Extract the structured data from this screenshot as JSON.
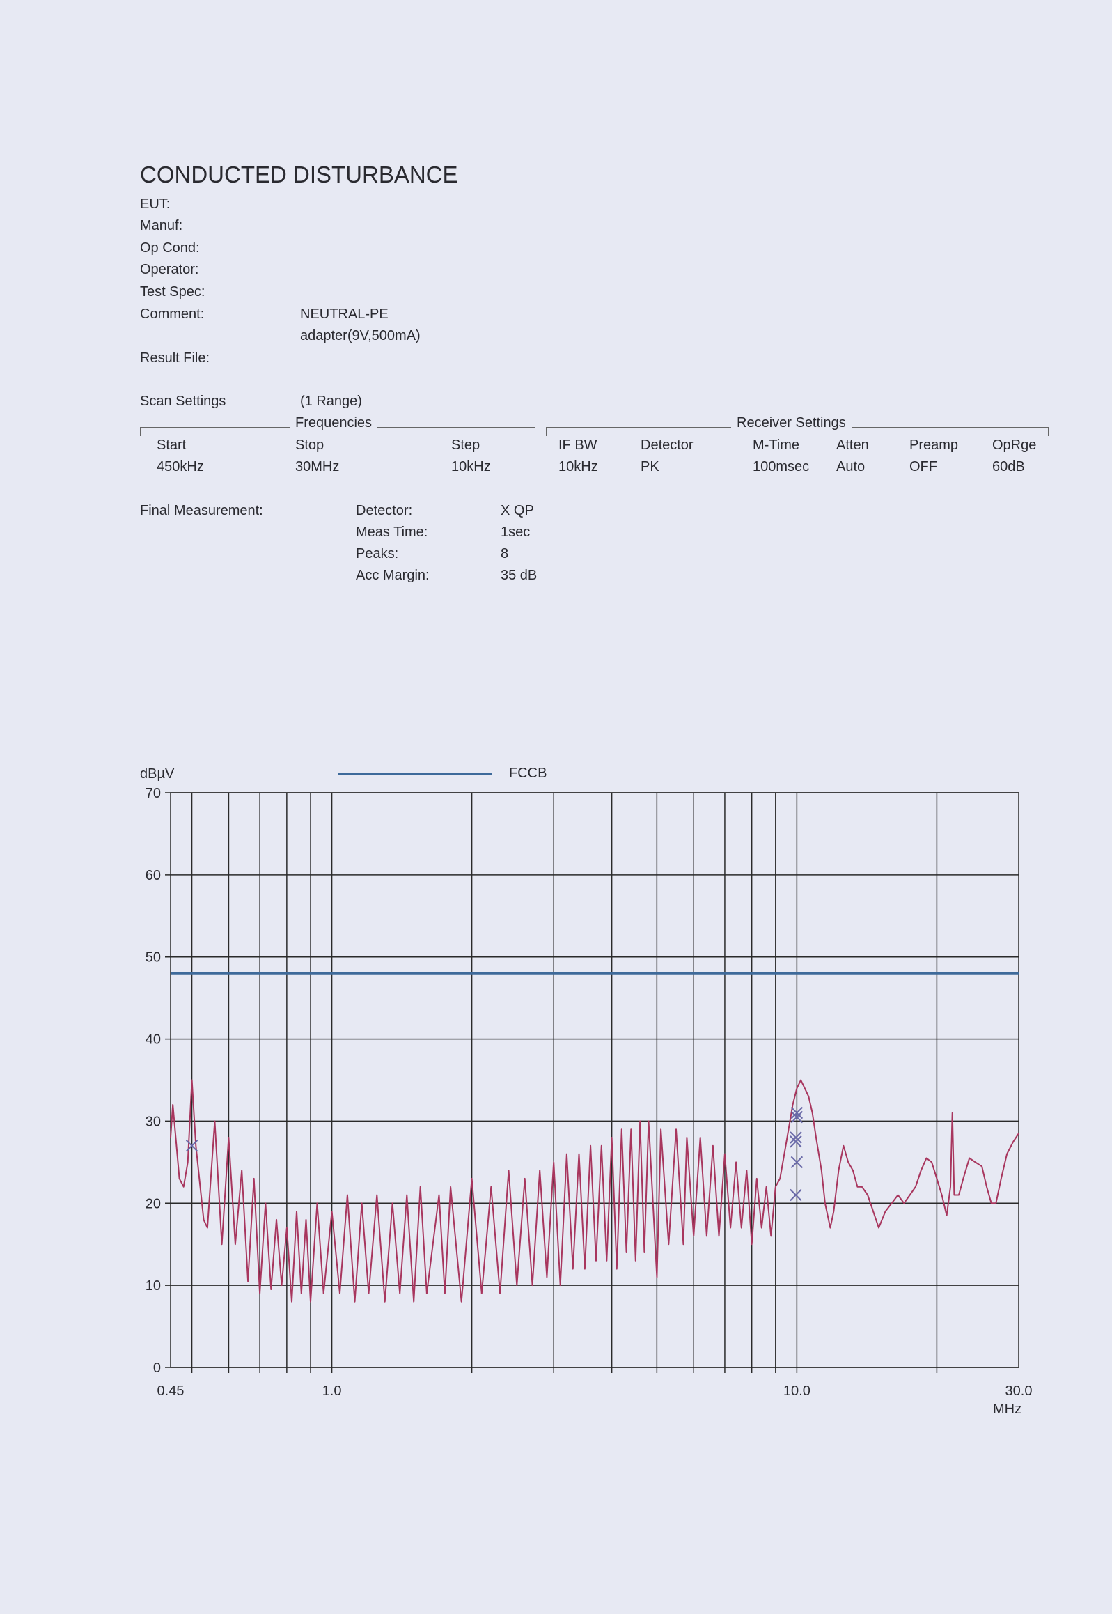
{
  "header": {
    "title": "CONDUCTED DISTURBANCE",
    "fields": [
      {
        "label": "EUT:",
        "value": ""
      },
      {
        "label": "Manuf:",
        "value": ""
      },
      {
        "label": "Op Cond:",
        "value": ""
      },
      {
        "label": "Operator:",
        "value": ""
      },
      {
        "label": "Test Spec:",
        "value": ""
      },
      {
        "label": "Comment:",
        "value": "NEUTRAL-PE"
      },
      {
        "label": "",
        "value": "adapter(9V,500mA)"
      },
      {
        "label": "Result File:",
        "value": ""
      }
    ]
  },
  "scan": {
    "label": "Scan Settings",
    "range": "(1  Range)",
    "frequencies_heading": "Frequencies",
    "receiver_heading": "Receiver Settings",
    "columns": [
      {
        "name": "Start",
        "value": "450kHz"
      },
      {
        "name": "Stop",
        "value": "30MHz"
      },
      {
        "name": "Step",
        "value": "10kHz"
      },
      {
        "name": "IF BW",
        "value": "10kHz"
      },
      {
        "name": "Detector",
        "value": "PK"
      },
      {
        "name": "M-Time",
        "value": "100msec"
      },
      {
        "name": "Atten",
        "value": "Auto"
      },
      {
        "name": "Preamp",
        "value": "OFF"
      },
      {
        "name": "OpRge",
        "value": "60dB"
      }
    ]
  },
  "final": {
    "label": "Final Measurement:",
    "rows": [
      {
        "name": "Detector:",
        "value": "X QP"
      },
      {
        "name": "Meas Time:",
        "value": "1sec"
      },
      {
        "name": "Peaks:",
        "value": "8"
      },
      {
        "name": "Acc Margin:",
        "value": "35 dB"
      }
    ]
  },
  "chart_data": {
    "type": "line",
    "ylabel": "dBµV",
    "xlabel": "MHz",
    "x_scale": "log",
    "xlim": [
      0.45,
      30.0
    ],
    "ylim": [
      0,
      70
    ],
    "yticks": [
      "0",
      "10",
      "20",
      "30",
      "40",
      "50",
      "60",
      "70"
    ],
    "xtick_labels": [
      {
        "x": 0.45,
        "label": "0.45"
      },
      {
        "x": 1.0,
        "label": "1.0"
      },
      {
        "x": 10.0,
        "label": "10.0"
      },
      {
        "x": 30.0,
        "label": "30.0"
      }
    ],
    "x_gridlines": [
      0.5,
      0.6,
      0.7,
      0.8,
      0.9,
      1,
      2,
      3,
      4,
      5,
      6,
      7,
      8,
      9,
      10,
      20
    ],
    "grid": true,
    "legend_placement": "top",
    "colors": {
      "limit": "#3e6a9a",
      "trace": "#a8365e",
      "markers": "#6a6aa8",
      "grid": "#2a2a2a"
    },
    "series": [
      {
        "name": "FCCB",
        "role": "limit",
        "points": [
          [
            0.45,
            48
          ],
          [
            30.0,
            48
          ]
        ]
      },
      {
        "role": "measurement",
        "points": [
          [
            0.45,
            28
          ],
          [
            0.455,
            32
          ],
          [
            0.47,
            23
          ],
          [
            0.48,
            22
          ],
          [
            0.49,
            25
          ],
          [
            0.5,
            35
          ],
          [
            0.51,
            27
          ],
          [
            0.53,
            18
          ],
          [
            0.54,
            17
          ],
          [
            0.56,
            30
          ],
          [
            0.58,
            15
          ],
          [
            0.6,
            28
          ],
          [
            0.62,
            15
          ],
          [
            0.64,
            24
          ],
          [
            0.66,
            10.5
          ],
          [
            0.68,
            23
          ],
          [
            0.7,
            9
          ],
          [
            0.72,
            20
          ],
          [
            0.74,
            9.5
          ],
          [
            0.76,
            18
          ],
          [
            0.78,
            10
          ],
          [
            0.8,
            17
          ],
          [
            0.82,
            8
          ],
          [
            0.84,
            19
          ],
          [
            0.86,
            9
          ],
          [
            0.88,
            18
          ],
          [
            0.9,
            8
          ],
          [
            0.93,
            20
          ],
          [
            0.96,
            9
          ],
          [
            1.0,
            19
          ],
          [
            1.04,
            9
          ],
          [
            1.08,
            21
          ],
          [
            1.12,
            8
          ],
          [
            1.16,
            20
          ],
          [
            1.2,
            9
          ],
          [
            1.25,
            21
          ],
          [
            1.3,
            8
          ],
          [
            1.35,
            20
          ],
          [
            1.4,
            9
          ],
          [
            1.45,
            21
          ],
          [
            1.5,
            8
          ],
          [
            1.55,
            22
          ],
          [
            1.6,
            9
          ],
          [
            1.7,
            21
          ],
          [
            1.75,
            9
          ],
          [
            1.8,
            22
          ],
          [
            1.9,
            8
          ],
          [
            2.0,
            23
          ],
          [
            2.1,
            9
          ],
          [
            2.2,
            22
          ],
          [
            2.3,
            9
          ],
          [
            2.4,
            24
          ],
          [
            2.5,
            10
          ],
          [
            2.6,
            23
          ],
          [
            2.7,
            10
          ],
          [
            2.8,
            24
          ],
          [
            2.9,
            11
          ],
          [
            3.0,
            25
          ],
          [
            3.1,
            10
          ],
          [
            3.2,
            26
          ],
          [
            3.3,
            12
          ],
          [
            3.4,
            26
          ],
          [
            3.5,
            12
          ],
          [
            3.6,
            27
          ],
          [
            3.7,
            13
          ],
          [
            3.8,
            27
          ],
          [
            3.9,
            13
          ],
          [
            4.0,
            28
          ],
          [
            4.1,
            12
          ],
          [
            4.2,
            29
          ],
          [
            4.3,
            14
          ],
          [
            4.4,
            29
          ],
          [
            4.5,
            13
          ],
          [
            4.6,
            30
          ],
          [
            4.7,
            14
          ],
          [
            4.8,
            30
          ],
          [
            5.0,
            11
          ],
          [
            5.1,
            29
          ],
          [
            5.3,
            15
          ],
          [
            5.5,
            29
          ],
          [
            5.7,
            15
          ],
          [
            5.8,
            28
          ],
          [
            6.0,
            16
          ],
          [
            6.2,
            28
          ],
          [
            6.4,
            16
          ],
          [
            6.6,
            27
          ],
          [
            6.8,
            16
          ],
          [
            7.0,
            26
          ],
          [
            7.2,
            17
          ],
          [
            7.4,
            25
          ],
          [
            7.6,
            17
          ],
          [
            7.8,
            24
          ],
          [
            8.0,
            15
          ],
          [
            8.2,
            23
          ],
          [
            8.4,
            17
          ],
          [
            8.6,
            22
          ],
          [
            8.8,
            16
          ],
          [
            9.0,
            22
          ],
          [
            9.2,
            23
          ],
          [
            9.4,
            26
          ],
          [
            9.6,
            29
          ],
          [
            9.8,
            32
          ],
          [
            10.0,
            34
          ],
          [
            10.2,
            35
          ],
          [
            10.4,
            34
          ],
          [
            10.6,
            33
          ],
          [
            10.8,
            31
          ],
          [
            11.0,
            28
          ],
          [
            11.3,
            24
          ],
          [
            11.5,
            20
          ],
          [
            11.8,
            17
          ],
          [
            12.0,
            19
          ],
          [
            12.3,
            24
          ],
          [
            12.6,
            27
          ],
          [
            12.9,
            25
          ],
          [
            13.2,
            24
          ],
          [
            13.5,
            22
          ],
          [
            13.8,
            22
          ],
          [
            14.2,
            21
          ],
          [
            14.6,
            19
          ],
          [
            15.0,
            17
          ],
          [
            15.5,
            19
          ],
          [
            16.0,
            20
          ],
          [
            16.5,
            21
          ],
          [
            17.0,
            20
          ],
          [
            17.5,
            21
          ],
          [
            18.0,
            22
          ],
          [
            18.5,
            24
          ],
          [
            19.0,
            25.5
          ],
          [
            19.5,
            25
          ],
          [
            20.0,
            23
          ],
          [
            20.5,
            21
          ],
          [
            21.0,
            18.5
          ],
          [
            21.4,
            22
          ],
          [
            21.6,
            31
          ],
          [
            21.8,
            21
          ],
          [
            22.3,
            21
          ],
          [
            22.8,
            23
          ],
          [
            23.5,
            25.5
          ],
          [
            24.2,
            25
          ],
          [
            25.0,
            24.5
          ],
          [
            25.6,
            22
          ],
          [
            26.2,
            20
          ],
          [
            26.8,
            20
          ],
          [
            27.5,
            23
          ],
          [
            28.3,
            26
          ],
          [
            29.2,
            27.5
          ],
          [
            30.0,
            28.5
          ]
        ]
      }
    ],
    "markers": [
      [
        0.5,
        27
      ],
      [
        10.0,
        31
      ],
      [
        10.0,
        30.5
      ],
      [
        9.95,
        28
      ],
      [
        9.95,
        27.5
      ],
      [
        10.0,
        25
      ],
      [
        9.95,
        21
      ]
    ]
  }
}
